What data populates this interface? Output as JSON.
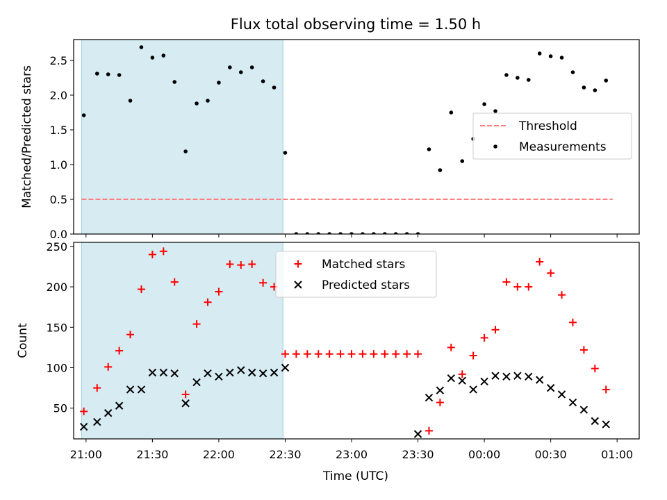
{
  "title": "Flux total observing time = 1.50 h",
  "xlabel": "Time (UTC)",
  "x_ticks": [
    "21:00",
    "21:30",
    "22:00",
    "22:30",
    "23:00",
    "23:30",
    "00:00",
    "00:30",
    "01:00"
  ],
  "chart_data": [
    {
      "type": "scatter",
      "ylabel": "Matched/Predicted stars",
      "ylim": [
        0,
        2.8
      ],
      "yticks": [
        "0.0",
        "0.5",
        "1.0",
        "1.5",
        "2.0",
        "2.5"
      ],
      "x_units": "minutes after 21:00 UTC",
      "x_range": [
        -5.6,
        250
      ],
      "shaded_interval": [
        -2,
        89
      ],
      "legend_position": "center-right",
      "series": [
        {
          "name": "Threshold",
          "style": "dashed-line",
          "color": "#ff7f7f",
          "x": [
            -2,
            238
          ],
          "y": [
            0.5,
            0.5
          ]
        },
        {
          "name": "Measurements",
          "style": "dots",
          "color": "#000000",
          "x": [
            -1,
            5,
            10,
            15,
            20,
            25,
            30,
            35,
            40,
            45,
            50,
            55,
            60,
            65,
            70,
            75,
            80,
            85,
            90,
            95,
            100,
            105,
            110,
            115,
            120,
            125,
            130,
            135,
            140,
            145,
            150,
            155,
            160,
            165,
            170,
            175,
            180,
            185,
            190,
            195,
            200,
            205,
            210,
            215,
            220,
            225,
            230,
            235
          ],
          "y": [
            1.71,
            2.31,
            2.3,
            2.29,
            1.92,
            2.69,
            2.54,
            2.57,
            2.19,
            1.19,
            1.88,
            1.92,
            2.18,
            2.4,
            2.33,
            2.4,
            2.2,
            2.11,
            1.17,
            0.0,
            0.0,
            0.0,
            0.0,
            0.0,
            0.0,
            0.0,
            0.0,
            0.0,
            0.0,
            0.0,
            0.0,
            1.22,
            0.92,
            1.75,
            1.05,
            1.37,
            1.87,
            1.77,
            2.29,
            2.25,
            2.22,
            2.6,
            2.56,
            2.54,
            2.33,
            2.11,
            2.07,
            2.21
          ]
        }
      ]
    },
    {
      "type": "scatter",
      "ylabel": "Count",
      "ylim": [
        12,
        255
      ],
      "yticks": [
        "50",
        "100",
        "150",
        "200",
        "250"
      ],
      "x_units": "minutes after 21:00 UTC",
      "x_range": [
        -5.6,
        250
      ],
      "shaded_interval": [
        -2,
        89
      ],
      "legend_position": "top-center",
      "series": [
        {
          "name": "Matched stars",
          "marker": "plus",
          "color": "#ff0000",
          "x": [
            -1,
            5,
            10,
            15,
            20,
            25,
            30,
            35,
            40,
            45,
            50,
            55,
            60,
            65,
            70,
            75,
            80,
            85,
            90,
            95,
            100,
            105,
            110,
            115,
            120,
            125,
            130,
            135,
            140,
            145,
            150,
            155,
            160,
            165,
            170,
            175,
            180,
            185,
            190,
            195,
            200,
            205,
            210,
            215,
            220,
            225,
            230,
            235
          ],
          "y": [
            46,
            75,
            101,
            121,
            141,
            197,
            240,
            244,
            206,
            67,
            154,
            181,
            194,
            228,
            227,
            228,
            205,
            200,
            117,
            117,
            117,
            117,
            117,
            117,
            117,
            117,
            117,
            117,
            117,
            117,
            117,
            22,
            57,
            125,
            92,
            115,
            137,
            147,
            206,
            200,
            200,
            231,
            217,
            190,
            156,
            122,
            99,
            73
          ]
        },
        {
          "name": "Predicted stars",
          "marker": "x",
          "color": "#000000",
          "x": [
            -1,
            5,
            10,
            15,
            20,
            25,
            30,
            35,
            40,
            45,
            50,
            55,
            60,
            65,
            70,
            75,
            80,
            85,
            90,
            150,
            155,
            160,
            165,
            170,
            175,
            180,
            185,
            190,
            195,
            200,
            205,
            210,
            215,
            220,
            225,
            230,
            235
          ],
          "y": [
            27,
            33,
            44,
            53,
            73,
            73,
            94,
            94,
            93,
            56,
            82,
            93,
            89,
            94,
            97,
            94,
            93,
            94,
            100,
            18,
            63,
            72,
            87,
            84,
            73,
            83,
            90,
            89,
            90,
            89,
            85,
            75,
            67,
            57,
            48,
            34,
            30
          ]
        }
      ]
    }
  ]
}
